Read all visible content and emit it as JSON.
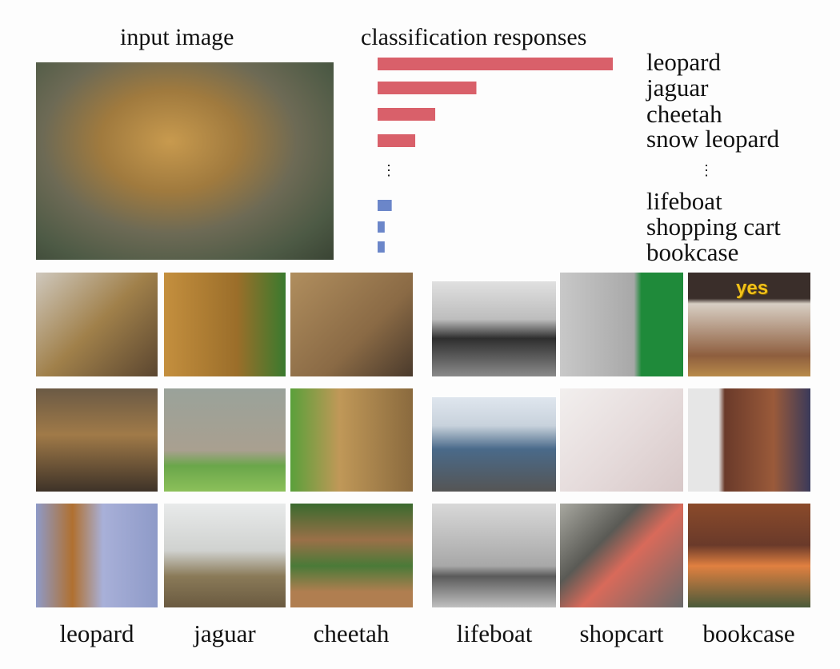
{
  "left_title": "input image",
  "chart_data": {
    "type": "bar",
    "orientation": "horizontal",
    "title": "classification responses",
    "categories": [
      "leopard",
      "jaguar",
      "cheetah",
      "snow leopard",
      "lifeboat",
      "shopping cart",
      "bookcase"
    ],
    "values": [
      1.0,
      0.42,
      0.245,
      0.16,
      0.06,
      0.03,
      0.03
    ],
    "colors": [
      "#d9606a",
      "#d9606a",
      "#d9606a",
      "#d9606a",
      "#6b86c9",
      "#6b86c9",
      "#6b86c9"
    ],
    "ellipsis": "⋮",
    "grid": false
  },
  "thumbnail_text": "yes",
  "column_labels": [
    "leopard",
    "jaguar",
    "cheetah",
    "lifeboat",
    "shopcart",
    "bookcase"
  ]
}
